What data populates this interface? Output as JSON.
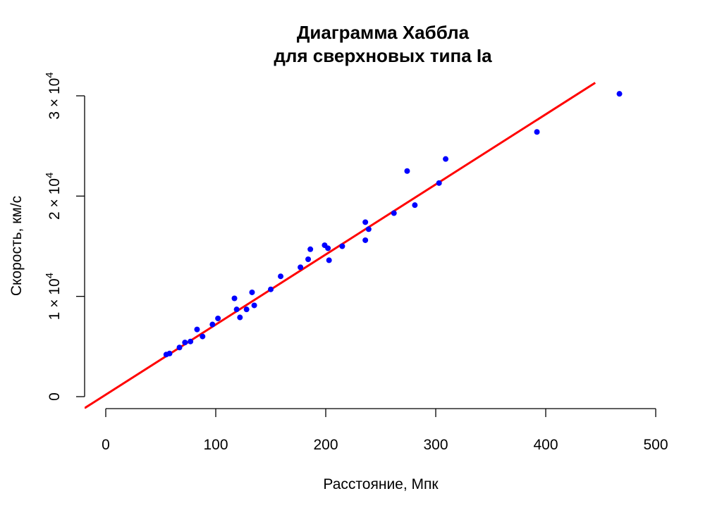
{
  "chart_data": {
    "type": "scatter",
    "title_lines": [
      "Диаграмма Хаббла",
      "для сверхновых типа Ia"
    ],
    "xlabel": "Расстояние, Мпк",
    "ylabel": "Скорость, км/с",
    "xlim": [
      0,
      500
    ],
    "ylim": [
      0,
      30000
    ],
    "x_ticks": [
      {
        "value": 0,
        "label": "0"
      },
      {
        "value": 100,
        "label": "100"
      },
      {
        "value": 200,
        "label": "200"
      },
      {
        "value": 300,
        "label": "300"
      },
      {
        "value": 400,
        "label": "400"
      },
      {
        "value": 500,
        "label": "500"
      }
    ],
    "y_ticks": [
      {
        "value": 0,
        "label": "0"
      },
      {
        "value": 10000,
        "label": "1 × 10",
        "sup": "4"
      },
      {
        "value": 20000,
        "label": "2 × 10",
        "sup": "4"
      },
      {
        "value": 30000,
        "label": "3 × 10",
        "sup": "4"
      }
    ],
    "grid": false,
    "point_color": "#0000ff",
    "line_color": "#ff0000",
    "points": [
      {
        "x": 55,
        "y": 4200
      },
      {
        "x": 58,
        "y": 4300
      },
      {
        "x": 67,
        "y": 4900
      },
      {
        "x": 72,
        "y": 5400
      },
      {
        "x": 77,
        "y": 5500
      },
      {
        "x": 83,
        "y": 6700
      },
      {
        "x": 88,
        "y": 6000
      },
      {
        "x": 97,
        "y": 7200
      },
      {
        "x": 102,
        "y": 7800
      },
      {
        "x": 117,
        "y": 9800
      },
      {
        "x": 119,
        "y": 8700
      },
      {
        "x": 122,
        "y": 7900
      },
      {
        "x": 128,
        "y": 8700
      },
      {
        "x": 133,
        "y": 10400
      },
      {
        "x": 135,
        "y": 9100
      },
      {
        "x": 150,
        "y": 10700
      },
      {
        "x": 159,
        "y": 12000
      },
      {
        "x": 177,
        "y": 12900
      },
      {
        "x": 184,
        "y": 13700
      },
      {
        "x": 186,
        "y": 14700
      },
      {
        "x": 199,
        "y": 15100
      },
      {
        "x": 202,
        "y": 14800
      },
      {
        "x": 203,
        "y": 13600
      },
      {
        "x": 215,
        "y": 15000
      },
      {
        "x": 236,
        "y": 17400
      },
      {
        "x": 236,
        "y": 15600
      },
      {
        "x": 239,
        "y": 16700
      },
      {
        "x": 262,
        "y": 18300
      },
      {
        "x": 274,
        "y": 22500
      },
      {
        "x": 281,
        "y": 19100
      },
      {
        "x": 303,
        "y": 21300
      },
      {
        "x": 309,
        "y": 23700
      },
      {
        "x": 392,
        "y": 26400
      },
      {
        "x": 467,
        "y": 30200
      }
    ],
    "fit_line": {
      "x0": -20,
      "y0": -1200,
      "x1": 445,
      "y1": 31300
    }
  }
}
